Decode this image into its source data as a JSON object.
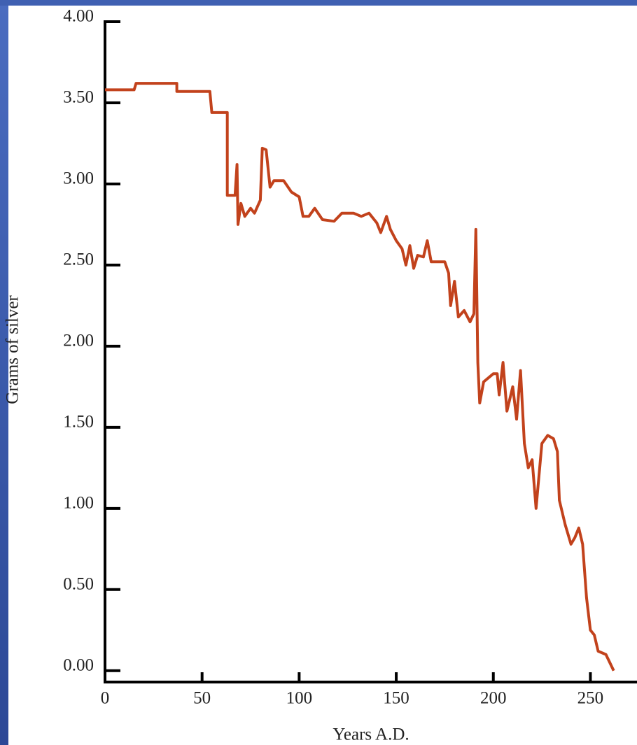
{
  "chart_data": {
    "type": "line",
    "xlabel": "Years A.D.",
    "ylabel": "Grams of silver",
    "color": "#c2421c",
    "x": [
      0,
      15,
      16,
      37,
      37,
      54,
      55,
      63,
      63,
      67,
      68,
      68.5,
      70,
      72,
      75,
      77,
      80,
      81,
      83,
      85,
      87,
      92,
      96,
      100,
      102,
      105,
      108,
      112,
      118,
      122,
      128,
      132,
      136,
      140,
      142,
      145,
      147,
      150,
      153,
      155,
      157,
      159,
      161,
      164,
      166,
      168,
      175,
      177,
      178,
      180,
      182,
      185,
      188,
      190,
      191,
      192,
      193,
      195,
      200,
      202,
      203,
      205,
      207,
      210,
      212,
      214,
      216,
      218,
      220,
      222,
      225,
      228,
      231,
      233,
      234,
      237,
      240,
      242,
      244,
      246,
      248,
      250,
      252,
      254,
      258,
      262
    ],
    "values": [
      3.58,
      3.58,
      3.62,
      3.62,
      3.57,
      3.57,
      3.44,
      3.44,
      2.93,
      2.93,
      3.12,
      2.75,
      2.88,
      2.8,
      2.85,
      2.82,
      2.9,
      3.22,
      3.21,
      2.98,
      3.02,
      3.02,
      2.95,
      2.92,
      2.8,
      2.8,
      2.85,
      2.78,
      2.77,
      2.82,
      2.82,
      2.8,
      2.82,
      2.76,
      2.7,
      2.8,
      2.72,
      2.65,
      2.6,
      2.5,
      2.62,
      2.48,
      2.56,
      2.55,
      2.65,
      2.52,
      2.52,
      2.45,
      2.25,
      2.4,
      2.18,
      2.22,
      2.15,
      2.2,
      2.72,
      1.9,
      1.65,
      1.78,
      1.83,
      1.83,
      1.7,
      1.9,
      1.6,
      1.75,
      1.55,
      1.85,
      1.4,
      1.25,
      1.3,
      1.0,
      1.4,
      1.45,
      1.43,
      1.35,
      1.05,
      0.9,
      0.78,
      0.82,
      0.88,
      0.78,
      0.45,
      0.25,
      0.22,
      0.12,
      0.1,
      0.0
    ],
    "xlim": [
      0,
      274
    ],
    "xticks": [
      0,
      50,
      100,
      150,
      200,
      250
    ],
    "ylim": [
      -0.07,
      4
    ],
    "yticks": [
      {
        "value": 0,
        "label": "0.00"
      },
      {
        "value": 0.5,
        "label": "0.50"
      },
      {
        "value": 1,
        "label": "1.00"
      },
      {
        "value": 1.5,
        "label": "1.50"
      },
      {
        "value": 2,
        "label": "2.00"
      },
      {
        "value": 2.5,
        "label": "2.50"
      },
      {
        "value": 3,
        "label": "3.00"
      },
      {
        "value": 3.5,
        "label": "3.50"
      },
      {
        "value": 4,
        "label": "4.00"
      }
    ]
  }
}
